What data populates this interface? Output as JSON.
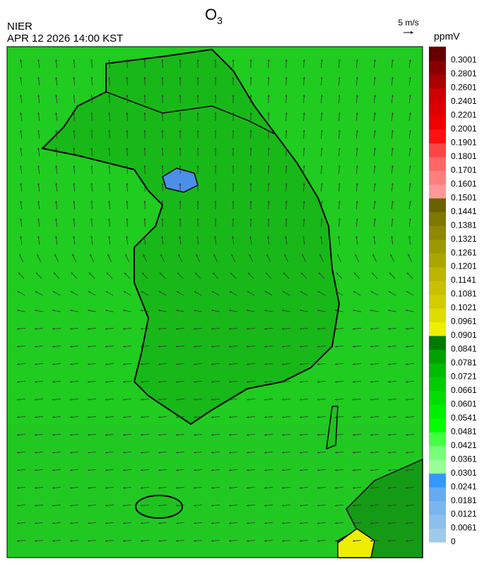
{
  "header": {
    "title": {
      "base": "O",
      "subscript": "3"
    },
    "agency": "NIER",
    "datetime": "APR 12 2026 14:00 KST",
    "wind_scale": "5 m/s"
  },
  "colorbar": {
    "unit": "ppmV",
    "levels": [
      {
        "label": "0",
        "color": "#9dcbea"
      },
      {
        "label": "0.0061",
        "color": "#8cc0ec"
      },
      {
        "label": "0.0121",
        "color": "#7ab6ee"
      },
      {
        "label": "0.0181",
        "color": "#66abf0"
      },
      {
        "label": "0.0241",
        "color": "#3399ff"
      },
      {
        "label": "0.0301",
        "color": "#99ff99"
      },
      {
        "label": "0.0361",
        "color": "#77ff77"
      },
      {
        "label": "0.0421",
        "color": "#44ff44"
      },
      {
        "label": "0.0481",
        "color": "#00ff00"
      },
      {
        "label": "0.0541",
        "color": "#00ee00"
      },
      {
        "label": "0.0601",
        "color": "#00dd00"
      },
      {
        "label": "0.0661",
        "color": "#00cc00"
      },
      {
        "label": "0.0721",
        "color": "#00bb00"
      },
      {
        "label": "0.0781",
        "color": "#00a000"
      },
      {
        "label": "0.0841",
        "color": "#007a00"
      },
      {
        "label": "0.0901",
        "color": "#eeee00"
      },
      {
        "label": "0.0961",
        "color": "#dddd00"
      },
      {
        "label": "0.1021",
        "color": "#d2cc00"
      },
      {
        "label": "0.1081",
        "color": "#c8c000"
      },
      {
        "label": "0.1141",
        "color": "#bbb400"
      },
      {
        "label": "0.1201",
        "color": "#aaa600"
      },
      {
        "label": "0.1261",
        "color": "#9c9800"
      },
      {
        "label": "0.1321",
        "color": "#8c8800"
      },
      {
        "label": "0.1381",
        "color": "#7c7800"
      },
      {
        "label": "0.1441",
        "color": "#6a6200"
      },
      {
        "label": "0.1501",
        "color": "#ff9999"
      },
      {
        "label": "0.1601",
        "color": "#ff7f7f"
      },
      {
        "label": "0.1701",
        "color": "#ff6666"
      },
      {
        "label": "0.1801",
        "color": "#ff4444"
      },
      {
        "label": "0.1901",
        "color": "#ff1111"
      },
      {
        "label": "0.2001",
        "color": "#ee0000"
      },
      {
        "label": "0.2201",
        "color": "#dd0000"
      },
      {
        "label": "0.2401",
        "color": "#cc0000"
      },
      {
        "label": "0.2601",
        "color": "#aa0000"
      },
      {
        "label": "0.2801",
        "color": "#880000"
      },
      {
        "label": "0.3001",
        "color": "#660000"
      }
    ]
  }
}
